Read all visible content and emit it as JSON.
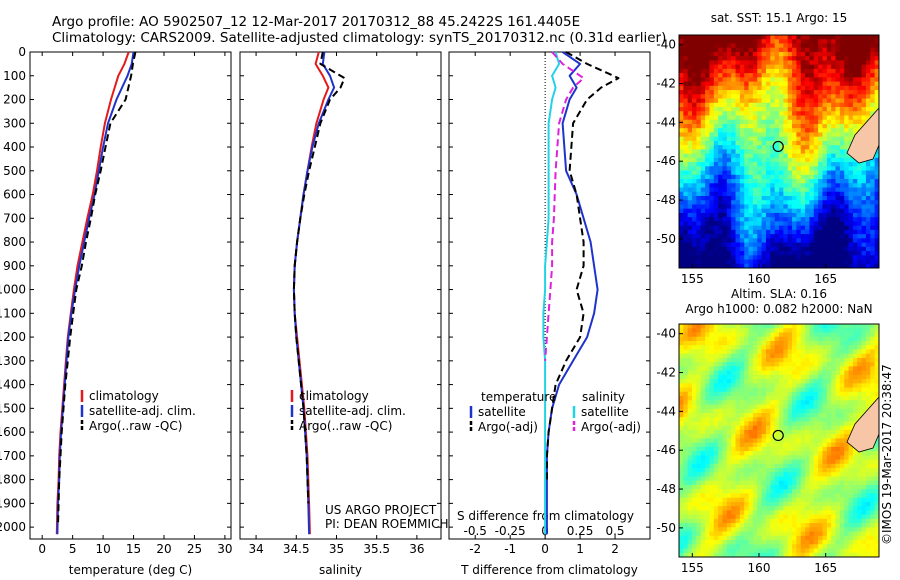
{
  "header": {
    "line1": "Argo profile: AO 5902507_12 12-Mar-2017 20170312_88 45.2422S 161.4405E",
    "line2": "Climatology: CARS2009. Satellite-adjusted climatology: synTS_20170312.nc (0.31d earlier)"
  },
  "colors": {
    "climatology": "#e41a1c",
    "satellite": "#1f33cc",
    "argo": "#000000",
    "salinity_sat": "#22d3e6",
    "salinity_argo": "#dd22dd"
  },
  "chart_data": [
    {
      "type": "line",
      "id": "temperature",
      "xlabel": "temperature (deg C)",
      "ylabel": "",
      "xlim": [
        -2,
        31
      ],
      "ylim": [
        2050,
        0
      ],
      "xticks": [
        "0",
        "5",
        "10",
        "15",
        "20",
        "25",
        "30"
      ],
      "xtickvals": [
        0,
        5,
        10,
        15,
        20,
        25,
        30
      ],
      "yticks": [
        "0",
        "100",
        "200",
        "300",
        "400",
        "500",
        "600",
        "700",
        "800",
        "900",
        "1000",
        "1100",
        "1200",
        "1300",
        "1400",
        "1500",
        "1600",
        "1700",
        "1800",
        "1900",
        "2000"
      ],
      "ytickvals": [
        0,
        100,
        200,
        300,
        400,
        500,
        600,
        700,
        800,
        900,
        1000,
        1100,
        1200,
        1300,
        1400,
        1500,
        1600,
        1700,
        1800,
        1900,
        2000
      ],
      "legend": [
        "climatology",
        "satellite-adj. clim.",
        "Argo(..raw -QC)"
      ],
      "series": [
        {
          "name": "climatology",
          "style": "solid",
          "color": "#e41a1c",
          "x": [
            14.2,
            13.5,
            12.5,
            11.3,
            10.3,
            9.6,
            9.0,
            8.3,
            7.4,
            6.6,
            5.8,
            5.2,
            4.7,
            4.2,
            3.9,
            3.6,
            3.3,
            3.0,
            2.8,
            2.7,
            2.5,
            2.4
          ],
          "y": [
            0,
            50,
            100,
            200,
            300,
            400,
            500,
            600,
            700,
            800,
            900,
            1000,
            1100,
            1200,
            1300,
            1400,
            1500,
            1600,
            1700,
            1800,
            1900,
            2030
          ]
        },
        {
          "name": "satellite-adj. clim.",
          "style": "solid",
          "color": "#1f33cc",
          "x": [
            15.0,
            14.7,
            14.0,
            12.2,
            10.8,
            10.0,
            9.3,
            8.6,
            7.7,
            6.9,
            6.1,
            5.4,
            4.8,
            4.3,
            4.0,
            3.7,
            3.4,
            3.1,
            2.9,
            2.8,
            2.6,
            2.5
          ],
          "y": [
            0,
            50,
            100,
            200,
            300,
            400,
            500,
            600,
            700,
            800,
            900,
            1000,
            1100,
            1200,
            1300,
            1400,
            1500,
            1600,
            1700,
            1800,
            1900,
            2030
          ]
        },
        {
          "name": "Argo(..raw -QC)",
          "style": "dashed",
          "color": "#000000",
          "x": [
            15.3,
            14.9,
            14.6,
            13.7,
            11.2,
            10.4,
            9.6,
            8.7,
            8.0,
            7.2,
            6.5,
            5.6,
            5.1,
            4.6,
            4.2,
            3.8,
            3.5,
            3.2,
            3.0,
            2.8,
            2.7,
            2.6
          ],
          "y": [
            0,
            50,
            100,
            200,
            300,
            400,
            500,
            600,
            700,
            800,
            900,
            1000,
            1100,
            1200,
            1300,
            1400,
            1500,
            1600,
            1700,
            1800,
            1900,
            1990
          ]
        }
      ]
    },
    {
      "type": "line",
      "id": "salinity",
      "xlabel": "salinity",
      "xlim": [
        33.8,
        36.3
      ],
      "ylim": [
        2050,
        0
      ],
      "xticks": [
        "34",
        "34.5",
        "35",
        "35.5",
        "36"
      ],
      "xtickvals": [
        34,
        34.5,
        35,
        35.5,
        36
      ],
      "legend": [
        "climatology",
        "satellite-adj. clim.",
        "Argo(..raw -QC)"
      ],
      "annotation": [
        "US ARGO PROJECT",
        "PI: DEAN ROEMMICH"
      ],
      "series": [
        {
          "name": "climatology",
          "style": "solid",
          "color": "#e41a1c",
          "x": [
            34.78,
            34.74,
            34.83,
            34.9,
            34.84,
            34.75,
            34.69,
            34.64,
            34.59,
            34.55,
            34.51,
            34.48,
            34.47,
            34.48,
            34.51,
            34.54,
            34.57,
            34.6,
            34.62,
            34.64,
            34.65,
            34.66,
            34.67
          ],
          "y": [
            0,
            50,
            100,
            150,
            200,
            300,
            400,
            500,
            600,
            700,
            800,
            900,
            1000,
            1100,
            1200,
            1300,
            1400,
            1500,
            1600,
            1700,
            1800,
            1900,
            2030
          ]
        },
        {
          "name": "satellite-adj. clim.",
          "style": "solid",
          "color": "#1f33cc",
          "x": [
            34.85,
            34.83,
            34.92,
            34.97,
            34.9,
            34.78,
            34.7,
            34.64,
            34.59,
            34.55,
            34.51,
            34.48,
            34.47,
            34.48,
            34.5,
            34.53,
            34.56,
            34.59,
            34.61,
            34.63,
            34.64,
            34.65,
            34.66
          ],
          "y": [
            0,
            50,
            100,
            150,
            200,
            300,
            400,
            500,
            600,
            700,
            800,
            900,
            1000,
            1100,
            1200,
            1300,
            1400,
            1500,
            1600,
            1700,
            1800,
            1900,
            2030
          ]
        },
        {
          "name": "Argo(..raw -QC)",
          "style": "dashed",
          "color": "#000000",
          "x": [
            34.83,
            34.8,
            35.1,
            35.05,
            34.92,
            34.8,
            34.73,
            34.66,
            34.6,
            34.55,
            34.51,
            34.48,
            34.47,
            34.48,
            34.5,
            34.53,
            34.56,
            34.59,
            34.61,
            34.63,
            34.64,
            34.65
          ],
          "y": [
            0,
            50,
            110,
            150,
            200,
            300,
            400,
            500,
            600,
            700,
            800,
            900,
            1000,
            1100,
            1200,
            1300,
            1400,
            1500,
            1600,
            1700,
            1800,
            1900
          ]
        }
      ]
    },
    {
      "type": "line",
      "id": "difference",
      "xlabel": "T difference from climatology",
      "xlabel2": "S difference from climatology",
      "xlim": [
        -2.75,
        3.0
      ],
      "ylim": [
        2050,
        0
      ],
      "xticks": [
        "-2",
        "-1",
        "0",
        "1",
        "2"
      ],
      "xtickvals": [
        -2,
        -1,
        0,
        1,
        2
      ],
      "sticks": [
        "-0.5",
        "-0.25",
        "0",
        "0.25",
        "0.5"
      ],
      "stickvals": [
        -2,
        -1,
        0,
        1,
        2
      ],
      "legend": {
        "temperature": "temperature",
        "salinity": "salinity",
        "t_sat": "satellite",
        "t_argo": "Argo(-adj)",
        "s_sat": "satellite",
        "s_argo": "Argo(-adj)"
      },
      "series": [
        {
          "name": "T satellite",
          "style": "solid",
          "color": "#1f33cc",
          "x": [
            0.5,
            1.0,
            0.7,
            0.9,
            0.7,
            0.5,
            0.6,
            0.9,
            1.1,
            1.3,
            1.4,
            1.5,
            1.4,
            1.2,
            0.8,
            0.4,
            0.2,
            0.1,
            0.05,
            0.05,
            0.05,
            0.05
          ],
          "y": [
            0,
            50,
            100,
            150,
            200,
            300,
            500,
            600,
            700,
            800,
            900,
            1000,
            1100,
            1200,
            1300,
            1400,
            1500,
            1600,
            1700,
            1800,
            1900,
            2030
          ]
        },
        {
          "name": "T Argo(-adj)",
          "style": "dashed",
          "color": "#000000",
          "x": [
            0.6,
            1.2,
            2.1,
            1.6,
            1.2,
            0.8,
            0.7,
            0.9,
            1.0,
            1.1,
            1.1,
            0.9,
            1.1,
            1.0,
            0.6,
            0.3,
            0.2,
            0.1,
            0.05,
            0.05
          ],
          "y": [
            0,
            50,
            110,
            150,
            200,
            300,
            500,
            600,
            700,
            800,
            900,
            1000,
            1100,
            1200,
            1300,
            1400,
            1500,
            1600,
            1700,
            1800
          ]
        },
        {
          "name": "S satellite",
          "style": "solid",
          "color": "#22d3e6",
          "x": [
            0.3,
            0.4,
            0.2,
            0.3,
            0.2,
            0.1,
            0.1,
            0.1,
            0.05,
            0.0,
            0.0,
            -0.05,
            -0.05,
            0.0,
            0.0,
            0.0,
            0.0,
            0.0,
            0.0,
            0.0
          ],
          "y": [
            0,
            50,
            100,
            150,
            200,
            300,
            500,
            700,
            800,
            900,
            1000,
            1100,
            1200,
            1300,
            1400,
            1500,
            1600,
            1700,
            1800,
            2030
          ]
        },
        {
          "name": "S Argo(-adj)",
          "style": "dashed",
          "color": "#dd22dd",
          "x": [
            0.2,
            0.5,
            1.1,
            0.8,
            0.6,
            0.4,
            0.3,
            0.25,
            0.2,
            0.2,
            0.15,
            0.1,
            0.05,
            0.0
          ],
          "y": [
            0,
            50,
            110,
            150,
            200,
            300,
            500,
            700,
            800,
            900,
            1000,
            1100,
            1200,
            1300
          ]
        }
      ]
    },
    {
      "type": "heatmap",
      "id": "sst_map",
      "title": "sat. SST: 15.1  Argo: 15",
      "xticks": [
        "155",
        "160",
        "165"
      ],
      "yticks": [
        "-40",
        "-42",
        "-44",
        "-46",
        "-48",
        "-50"
      ],
      "xlim": [
        154,
        169
      ],
      "ylim": [
        -51.5,
        -39.5
      ],
      "marker": {
        "lon": 161.44,
        "lat": -45.24
      }
    },
    {
      "type": "heatmap",
      "id": "sla_map",
      "title": "Altim. SLA: 0.16",
      "subtitle": "Argo h1000: 0.082 h2000: NaN",
      "xticks": [
        "155",
        "160",
        "165"
      ],
      "yticks": [
        "-40",
        "-42",
        "-44",
        "-46",
        "-48",
        "-50"
      ],
      "xlim": [
        154,
        169
      ],
      "ylim": [
        -51.5,
        -39.5
      ],
      "marker": {
        "lon": 161.44,
        "lat": -45.24
      }
    }
  ],
  "credit": "©IMOS 19-Mar-2017 20:38:47"
}
